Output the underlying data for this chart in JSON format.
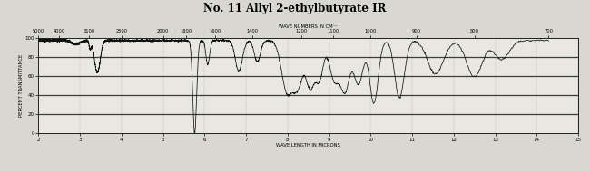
{
  "title": "No. 11 Allyl 2-ethylbutyrate IR",
  "top_xlabel": "WAVE NUMBERS IN CM⁻¹",
  "bottom_xlabel": "WAVE LENGTH IN MICRONS",
  "ylabel": "PERCENT TRANSMITTANCE",
  "top_ticks": [
    5000,
    4000,
    3100,
    2500,
    2000,
    1800,
    1600,
    1400,
    1200,
    1100,
    1000,
    900,
    800,
    700
  ],
  "bottom_ticks": [
    2,
    3,
    4,
    5,
    6,
    7,
    8,
    9,
    10,
    11,
    12,
    13,
    14,
    15
  ],
  "ylim": [
    0,
    100
  ],
  "yticks": [
    0,
    20,
    40,
    60,
    80,
    100
  ],
  "bg_color": "#e8e8e0",
  "line_color": "#111111",
  "grid_color_v": "#aaaaaa",
  "grid_color_h": "#333333",
  "title_fontsize": 8.5,
  "axis_fontsize": 4.0,
  "label_fontsize": 3.8
}
